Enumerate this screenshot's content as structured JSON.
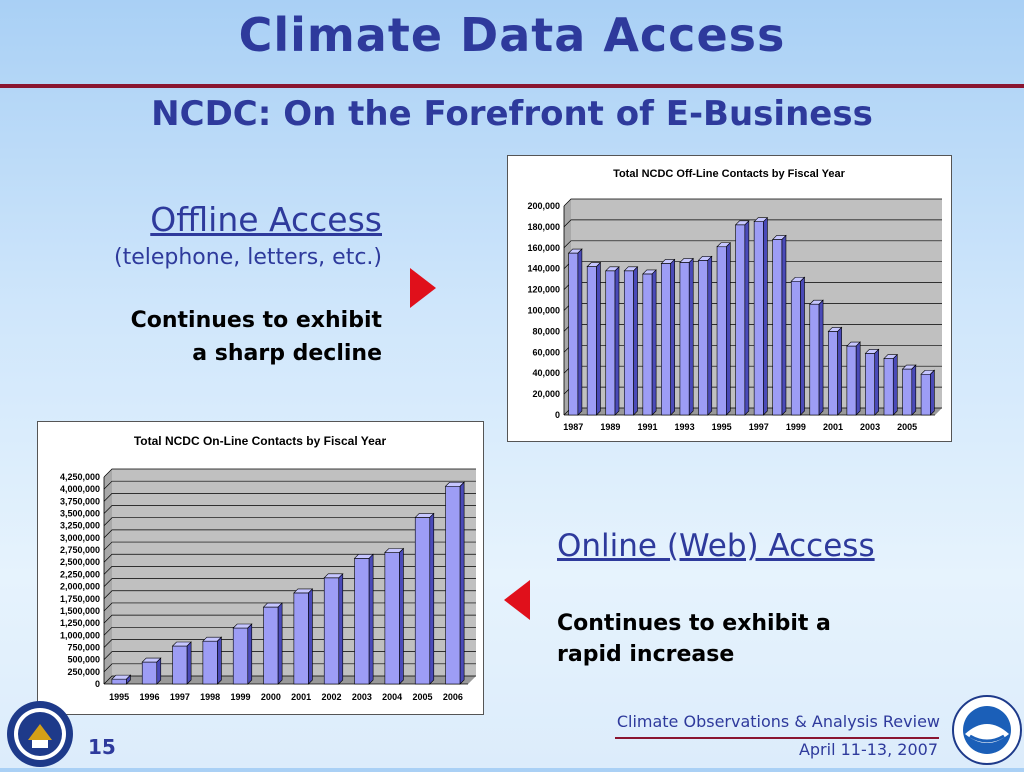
{
  "slide": {
    "title": "Climate Data Access",
    "subtitle": "NCDC:  On the Forefront of E-Business",
    "page_number": "15"
  },
  "offline": {
    "heading": "Offline Access",
    "subheading": "(telephone, letters, etc.)",
    "text_line1": "Continues to exhibit",
    "text_line2": "a sharp decline"
  },
  "online": {
    "heading": "Online (Web) Access",
    "text_line1": "Continues to exhibit a",
    "text_line2": "rapid increase"
  },
  "footer": {
    "line1": "Climate Observations & Analysis Review",
    "line2": "April 11-13, 2007"
  },
  "colors": {
    "title": "#2e3a9c",
    "rule": "#8a1530",
    "arrow": "#e0101b",
    "bar_front": "#9d9df5",
    "bar_top": "#c6c6ff",
    "bar_side": "#4a4ab8",
    "plot_back": "#c0c0c0"
  },
  "chart_data": [
    {
      "type": "bar",
      "title": "Total NCDC Off-Line Contacts by Fiscal Year",
      "categories": [
        "1987",
        "1988",
        "1989",
        "1990",
        "1991",
        "1992",
        "1993",
        "1994",
        "1995",
        "1996",
        "1997",
        "1998",
        "1999",
        "2000",
        "2001",
        "2002",
        "2003",
        "2004",
        "2005",
        "2006"
      ],
      "category_tick_labels": [
        "1987",
        "1989",
        "1991",
        "1993",
        "1995",
        "1997",
        "1999",
        "2001",
        "2003",
        "2005"
      ],
      "values": [
        155000,
        142000,
        138000,
        138000,
        135000,
        145000,
        146000,
        148000,
        161000,
        182000,
        185000,
        168000,
        128000,
        106000,
        80000,
        66000,
        59000,
        54000,
        44000,
        39000
      ],
      "ylim": [
        0,
        200000
      ],
      "y_tick_labels": [
        "0",
        "20,000",
        "40,000",
        "60,000",
        "80,000",
        "100,000",
        "120,000",
        "140,000",
        "160,000",
        "180,000",
        "200,000"
      ],
      "grid": true,
      "legend": "none"
    },
    {
      "type": "bar",
      "title": "Total NCDC On-Line Contacts by Fiscal Year",
      "categories": [
        "1995",
        "1996",
        "1997",
        "1998",
        "1999",
        "2000",
        "2001",
        "2002",
        "2003",
        "2004",
        "2005",
        "2006"
      ],
      "category_tick_labels": [
        "1995",
        "1996",
        "1997",
        "1998",
        "1999",
        "2000",
        "2001",
        "2002",
        "2003",
        "2004",
        "2005",
        "2006"
      ],
      "values": [
        100000,
        450000,
        780000,
        880000,
        1150000,
        1580000,
        1870000,
        2180000,
        2580000,
        2700000,
        3420000,
        4060000
      ],
      "ylim": [
        0,
        4250000
      ],
      "y_tick_labels": [
        "0",
        "250,000",
        "500,000",
        "750,000",
        "1,000,000",
        "1,250,000",
        "1,500,000",
        "1,750,000",
        "2,000,000",
        "2,250,000",
        "2,500,000",
        "2,750,000",
        "3,000,000",
        "3,250,000",
        "3,500,000",
        "3,750,000",
        "4,000,000",
        "4,250,000"
      ],
      "grid": true,
      "legend": "none"
    }
  ]
}
